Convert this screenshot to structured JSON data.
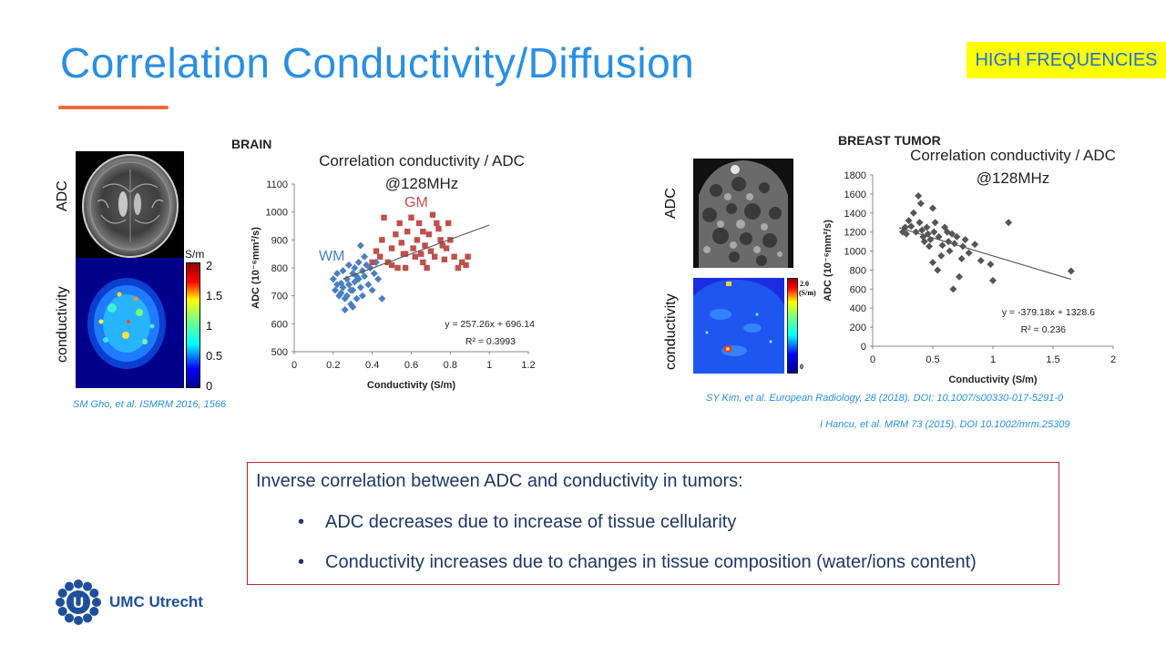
{
  "slide": {
    "title": "Correlation Conductivity/Diffusion",
    "badge": "HIGH FREQUENCIES",
    "accent_color": "#2a8fe3",
    "underline_color": "#ef6a3a",
    "badge_color": "#ffff00"
  },
  "brain": {
    "section_label": "BRAIN",
    "adc_label": "ADC",
    "conductivity_label": "conductivity",
    "colorbar_unit": "S/m",
    "colorbar_ticks": [
      "2",
      "1.5",
      "1",
      "0.5",
      "0"
    ],
    "citation": "SM Gho, et al. ISMRM 2016, 1566"
  },
  "breast": {
    "section_label": "BREAST TUMOR",
    "adc_label": "ADC",
    "conductivity_label": "conductivity",
    "colorbar_value": "2.0",
    "colorbar_unit": "(S/m)",
    "colorbar_zero": "0",
    "citation_1": "SY Kim, et al. European Radiology, 28 (2018). DOI: 10.1007/s00330-017-5291-0",
    "citation_2": "I Hancu, et al. MRM 73 (2015). DOI 10.1002/mrm.25309"
  },
  "summary": {
    "lead": "Inverse correlation between ADC and conductivity in tumors:",
    "bullets": [
      "ADC decreases due to increase of tissue cellularity",
      "Conductivity increases due to changes in tissue composition (water/ions content)"
    ]
  },
  "logo": {
    "name": "UMC Utrecht",
    "mark": "U"
  },
  "chart_data": [
    {
      "type": "scatter",
      "title": "Correlation conductivity / ADC",
      "subtitle": "@128MHz",
      "xlabel": "Conductivity (S/m)",
      "ylabel": "ADC (10⁻⁶mm²/s)",
      "xlim": [
        0,
        1.2
      ],
      "ylim": [
        500,
        1100
      ],
      "x_ticks": [
        "0",
        "0.2",
        "0.4",
        "0.6",
        "0.8",
        "1",
        "1.2"
      ],
      "y_ticks": [
        "500",
        "600",
        "700",
        "800",
        "900",
        "1000",
        "1100"
      ],
      "equation": "y = 257.26x + 696.14",
      "r2": "R² = 0.3993",
      "trendline": {
        "slope": 257.26,
        "intercept": 696.14,
        "x_range": [
          0.25,
          1.0
        ]
      },
      "series": [
        {
          "name": "WM",
          "color": "#4a7fc1",
          "marker": "diamond",
          "points": [
            [
              0.2,
              760
            ],
            [
              0.21,
              720
            ],
            [
              0.22,
              780
            ],
            [
              0.23,
              700
            ],
            [
              0.24,
              745
            ],
            [
              0.25,
              790
            ],
            [
              0.25,
              730
            ],
            [
              0.26,
              690
            ],
            [
              0.27,
              760
            ],
            [
              0.27,
              700
            ],
            [
              0.28,
              810
            ],
            [
              0.28,
              740
            ],
            [
              0.29,
              670
            ],
            [
              0.3,
              780
            ],
            [
              0.3,
              720
            ],
            [
              0.31,
              800
            ],
            [
              0.31,
              750
            ],
            [
              0.32,
              690
            ],
            [
              0.33,
              760
            ],
            [
              0.33,
              820
            ],
            [
              0.34,
              730
            ],
            [
              0.35,
              790
            ],
            [
              0.35,
              700
            ],
            [
              0.36,
              770
            ],
            [
              0.37,
              810
            ],
            [
              0.38,
              740
            ],
            [
              0.39,
              800
            ],
            [
              0.4,
              720
            ],
            [
              0.41,
              780
            ],
            [
              0.42,
              820
            ],
            [
              0.43,
              760
            ],
            [
              0.45,
              690
            ],
            [
              0.22,
              740
            ],
            [
              0.24,
              710
            ],
            [
              0.26,
              650
            ],
            [
              0.29,
              720
            ],
            [
              0.32,
              770
            ],
            [
              0.34,
              880
            ],
            [
              0.36,
              840
            ],
            [
              0.3,
              660
            ]
          ]
        },
        {
          "name": "GM",
          "color": "#c0504d",
          "marker": "square",
          "points": [
            [
              0.4,
              820
            ],
            [
              0.42,
              860
            ],
            [
              0.44,
              840
            ],
            [
              0.45,
              900
            ],
            [
              0.46,
              980
            ],
            [
              0.48,
              820
            ],
            [
              0.5,
              870
            ],
            [
              0.52,
              920
            ],
            [
              0.53,
              800
            ],
            [
              0.54,
              960
            ],
            [
              0.55,
              890
            ],
            [
              0.56,
              850
            ],
            [
              0.57,
              800
            ],
            [
              0.58,
              930
            ],
            [
              0.6,
              980
            ],
            [
              0.61,
              870
            ],
            [
              0.62,
              840
            ],
            [
              0.63,
              900
            ],
            [
              0.64,
              960
            ],
            [
              0.65,
              850
            ],
            [
              0.66,
              930
            ],
            [
              0.67,
              880
            ],
            [
              0.68,
              800
            ],
            [
              0.69,
              920
            ],
            [
              0.7,
              860
            ],
            [
              0.71,
              990
            ],
            [
              0.72,
              840
            ],
            [
              0.74,
              940
            ],
            [
              0.75,
              900
            ],
            [
              0.76,
              880
            ],
            [
              0.77,
              830
            ],
            [
              0.78,
              870
            ],
            [
              0.79,
              960
            ],
            [
              0.8,
              900
            ],
            [
              0.82,
              840
            ],
            [
              0.84,
              800
            ],
            [
              0.86,
              820
            ],
            [
              0.88,
              810
            ],
            [
              0.89,
              840
            ],
            [
              0.5,
              810
            ],
            [
              0.57,
              850
            ],
            [
              0.66,
              820
            ],
            [
              0.73,
              960
            ]
          ]
        }
      ],
      "series_labels": [
        "WM",
        "GM"
      ]
    },
    {
      "type": "scatter",
      "title": "Correlation conductivity / ADC",
      "subtitle": "@128MHz",
      "xlabel": "Conductivity (S/m)",
      "ylabel": "ADC (10⁻⁶mm²/s)",
      "xlim": [
        0,
        2
      ],
      "ylim": [
        0,
        1800
      ],
      "x_ticks": [
        "0",
        "0.5",
        "1",
        "1.5",
        "2"
      ],
      "y_ticks": [
        "0",
        "200",
        "400",
        "600",
        "800",
        "1000",
        "1200",
        "1400",
        "1600",
        "1800"
      ],
      "equation": "y = -379.18x + 1328.6",
      "r2": "R² = 0.236",
      "trendline": {
        "slope": -379.18,
        "intercept": 1328.6,
        "x_range": [
          0.22,
          1.65
        ]
      },
      "series": [
        {
          "name": "tumor",
          "color": "#555555",
          "marker": "diamond",
          "points": [
            [
              0.25,
              1200
            ],
            [
              0.27,
              1250
            ],
            [
              0.28,
              1180
            ],
            [
              0.3,
              1320
            ],
            [
              0.32,
              1260
            ],
            [
              0.34,
              1400
            ],
            [
              0.36,
              1200
            ],
            [
              0.38,
              1580
            ],
            [
              0.39,
              1300
            ],
            [
              0.4,
              1500
            ],
            [
              0.41,
              1220
            ],
            [
              0.42,
              1150
            ],
            [
              0.43,
              1100
            ],
            [
              0.45,
              1250
            ],
            [
              0.46,
              1180
            ],
            [
              0.47,
              1050
            ],
            [
              0.48,
              1120
            ],
            [
              0.5,
              1450
            ],
            [
              0.5,
              880
            ],
            [
              0.51,
              1200
            ],
            [
              0.52,
              1300
            ],
            [
              0.54,
              800
            ],
            [
              0.55,
              1150
            ],
            [
              0.57,
              950
            ],
            [
              0.58,
              1060
            ],
            [
              0.6,
              1250
            ],
            [
              0.62,
              1200
            ],
            [
              0.63,
              1100
            ],
            [
              0.64,
              1000
            ],
            [
              0.66,
              1180
            ],
            [
              0.67,
              600
            ],
            [
              0.68,
              1080
            ],
            [
              0.7,
              1150
            ],
            [
              0.72,
              730
            ],
            [
              0.74,
              920
            ],
            [
              0.75,
              1050
            ],
            [
              0.77,
              1120
            ],
            [
              0.8,
              980
            ],
            [
              0.85,
              1070
            ],
            [
              0.9,
              900
            ],
            [
              0.98,
              860
            ],
            [
              1.0,
              690
            ],
            [
              1.13,
              1300
            ],
            [
              1.65,
              790
            ]
          ]
        }
      ]
    }
  ]
}
